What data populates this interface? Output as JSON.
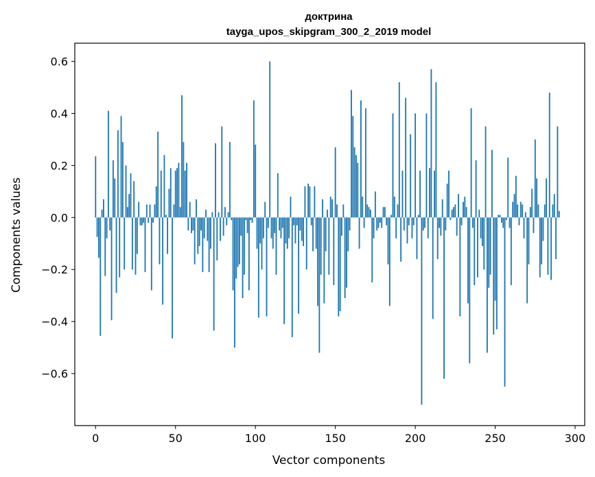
{
  "chart_data": {
    "type": "bar",
    "title_line1": "доктрина",
    "title_line2": "tayga_upos_skipgram_300_2_2019 model",
    "xlabel": "Vector components",
    "ylabel": "Components values",
    "xlim": [
      -13,
      306
    ],
    "ylim": [
      -0.8,
      0.67
    ],
    "xticks": [
      0,
      50,
      100,
      150,
      200,
      250,
      300
    ],
    "yticks": [
      -0.6,
      -0.4,
      -0.2,
      0.0,
      0.2,
      0.4,
      0.6
    ],
    "ytick_labels": [
      "−0.6",
      "−0.4",
      "−0.2",
      "0.0",
      "0.2",
      "0.4",
      "0.6"
    ],
    "bar_color": "#1f77b4",
    "grid": false,
    "values": [
      0.235,
      -0.075,
      -0.155,
      -0.455,
      0.03,
      0.07,
      -0.225,
      -0.08,
      0.41,
      -0.05,
      -0.395,
      0.22,
      0.15,
      -0.29,
      0.335,
      -0.23,
      0.39,
      0.29,
      -0.2,
      0.2,
      0.04,
      0.09,
      0.17,
      -0.2,
      0.14,
      -0.22,
      -0.14,
      0.06,
      -0.03,
      -0.03,
      -0.02,
      -0.21,
      0.05,
      -0.02,
      0.05,
      -0.28,
      -0.02,
      0.05,
      0.12,
      0.33,
      -0.18,
      0.18,
      -0.335,
      0.24,
      0.01,
      -0.14,
      0.11,
      0.19,
      -0.465,
      0.05,
      0.18,
      0.19,
      0.21,
      0.04,
      0.47,
      0.29,
      0.18,
      0.21,
      -0.05,
      0.06,
      -0.06,
      -0.05,
      -0.18,
      0.07,
      -0.14,
      -0.11,
      -0.05,
      -0.21,
      -0.08,
      0.03,
      -0.09,
      -0.21,
      -0.12,
      0.02,
      -0.435,
      0.285,
      -0.165,
      0.02,
      -0.09,
      0.35,
      -0.07,
      0.04,
      -0.03,
      0.02,
      0.29,
      -0.01,
      -0.28,
      -0.5,
      -0.235,
      -0.19,
      -0.18,
      -0.07,
      -0.31,
      -0.22,
      -0.01,
      -0.06,
      -0.28,
      -0.01,
      -0.02,
      0.45,
      0.28,
      -0.12,
      -0.385,
      -0.1,
      -0.2,
      -0.08,
      0.06,
      -0.38,
      -0.04,
      0.6,
      -0.08,
      -0.12,
      -0.06,
      -0.22,
      0.17,
      -0.05,
      -0.08,
      -0.04,
      -0.41,
      -0.1,
      -0.12,
      -0.08,
      0.08,
      -0.46,
      -0.03,
      -0.1,
      -0.03,
      -0.37,
      -0.05,
      -0.09,
      -0.11,
      0.12,
      -0.2,
      0.13,
      0.12,
      -0.03,
      -0.13,
      0.12,
      -0.12,
      -0.34,
      -0.52,
      -0.22,
      0.07,
      -0.33,
      -0.13,
      0.03,
      -0.22,
      0.08,
      0.07,
      -0.26,
      0.27,
      0.05,
      -0.38,
      -0.36,
      -0.07,
      0.05,
      -0.31,
      -0.27,
      -0.13,
      -0.05,
      0.49,
      0.39,
      0.27,
      0.24,
      0.21,
      -0.12,
      0.45,
      0.08,
      -0.04,
      0.42,
      0.05,
      0.04,
      0.03,
      -0.25,
      -0.08,
      0.1,
      -0.05,
      -0.04,
      -0.02,
      -0.04,
      0.04,
      0.04,
      -0.03,
      -0.18,
      -0.34,
      0.01,
      0.4,
      0.08,
      -0.08,
      0.05,
      0.52,
      -0.17,
      0.18,
      -0.05,
      0.46,
      -0.1,
      -0.03,
      0.32,
      -0.08,
      -0.03,
      0.4,
      -0.16,
      0.01,
      0.18,
      -0.72,
      -0.05,
      -0.04,
      0.4,
      -0.08,
      0.19,
      0.57,
      -0.39,
      0.18,
      0.52,
      -0.16,
      -0.04,
      -0.07,
      0.07,
      -0.62,
      -0.05,
      0.13,
      0.18,
      -0.01,
      0.03,
      0.04,
      0.05,
      -0.07,
      0.09,
      -0.38,
      -0.03,
      0.06,
      0.08,
      0.04,
      -0.33,
      -0.56,
      0.42,
      -0.04,
      -0.26,
      0.22,
      -0.23,
      0.03,
      -0.08,
      -0.11,
      -0.2,
      0.35,
      -0.52,
      -0.27,
      -0.22,
      0.26,
      -0.45,
      -0.32,
      -0.43,
      0.01,
      0.01,
      -0.02,
      -0.04,
      -0.65,
      -0.01,
      0.23,
      -0.04,
      -0.26,
      0.06,
      0.09,
      0.16,
      0.05,
      -0.03,
      0.06,
      0.05,
      -0.08,
      0.02,
      -0.33,
      -0.18,
      0.04,
      0.11,
      -0.06,
      0.3,
      0.15,
      0.05,
      -0.23,
      -0.18,
      -0.09,
      0.05,
      0.15,
      -0.22,
      0.48,
      -0.24,
      0.05,
      0.09,
      -0.16,
      0.35,
      0.025
    ]
  }
}
